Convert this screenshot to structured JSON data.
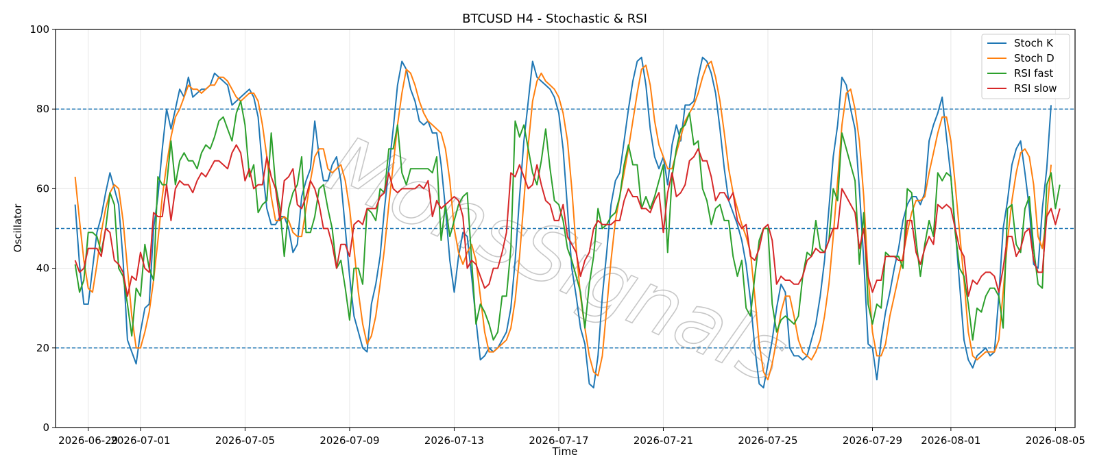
{
  "chart_data": {
    "type": "line",
    "title": "BTCUSD H4 - Stochastic & RSI",
    "xlabel": "Time",
    "ylabel": "Oscillator",
    "ylim": [
      0,
      100
    ],
    "yticks": [
      0,
      20,
      40,
      60,
      80,
      100
    ],
    "x_start": "2026-06-28T12:00",
    "x_interval_hours": 4,
    "xlim": [
      "2026-06-27T18:00",
      "2026-08-05T18:00"
    ],
    "xticks": [
      "2026-06-29",
      "2026-07-01",
      "2026-07-05",
      "2026-07-09",
      "2026-07-13",
      "2026-07-17",
      "2026-07-21",
      "2026-07-25",
      "2026-07-29",
      "2026-08-01",
      "2026-08-05"
    ],
    "reference_lines": [
      80,
      50,
      20
    ],
    "grid": true,
    "legend_position": "top-right",
    "watermark": "MonsSignals",
    "series": [
      {
        "name": "Stoch K",
        "color": "#1f77b4",
        "values": [
          56,
          41,
          31,
          31,
          40,
          49,
          53,
          59,
          64,
          60,
          56,
          42,
          22,
          19,
          16,
          24,
          30,
          31,
          50,
          58,
          70,
          80,
          75,
          80,
          85,
          83,
          88,
          83,
          84,
          85,
          85,
          86,
          89,
          88,
          87,
          86,
          81,
          82,
          83,
          84,
          85,
          83,
          78,
          65,
          55,
          51,
          51,
          53,
          53,
          50,
          44,
          46,
          58,
          62,
          65,
          77,
          68,
          62,
          62,
          66,
          68,
          62,
          50,
          38,
          28,
          24,
          20,
          19,
          31,
          36,
          43,
          55,
          65,
          75,
          86,
          92,
          90,
          85,
          82,
          77,
          76,
          77,
          74,
          74,
          66,
          55,
          42,
          34,
          43,
          49,
          48,
          38,
          27,
          17,
          18,
          20,
          19,
          20,
          22,
          24,
          30,
          42,
          58,
          72,
          82,
          92,
          88,
          87,
          86,
          85,
          83,
          79,
          70,
          55,
          40,
          33,
          25,
          21,
          11,
          10,
          18,
          33,
          44,
          56,
          62,
          64,
          72,
          80,
          87,
          92,
          93,
          86,
          75,
          68,
          65,
          68,
          61,
          71,
          76,
          72,
          81,
          81,
          82,
          88,
          93,
          92,
          89,
          84,
          75,
          65,
          57,
          54,
          51,
          47,
          41,
          32,
          20,
          11,
          10,
          16,
          22,
          30,
          36,
          34,
          20,
          18,
          18,
          17,
          18,
          22,
          26,
          33,
          42,
          55,
          68,
          76,
          88,
          86,
          80,
          75,
          60,
          42,
          21,
          20,
          12,
          22,
          29,
          34,
          40,
          45,
          52,
          56,
          58,
          58,
          56,
          59,
          72,
          76,
          79,
          83,
          73,
          63,
          50,
          36,
          22,
          17,
          15,
          18,
          19,
          20,
          18,
          19,
          33,
          50,
          57,
          66,
          70,
          72,
          64,
          55,
          41,
          40,
          55,
          65,
          81
        ]
      },
      {
        "name": "Stoch D",
        "color": "#ff7f0e",
        "values": [
          63,
          52,
          42,
          35,
          34,
          41,
          49,
          55,
          59,
          61,
          60,
          52,
          40,
          28,
          20,
          20,
          24,
          29,
          37,
          47,
          58,
          66,
          73,
          78,
          80,
          83,
          86,
          85,
          85,
          84,
          85,
          86,
          86,
          88,
          88,
          87,
          85,
          83,
          82,
          83,
          84,
          84,
          82,
          76,
          68,
          58,
          52,
          52,
          53,
          52,
          49,
          48,
          48,
          55,
          62,
          68,
          70,
          70,
          65,
          64,
          65,
          66,
          62,
          55,
          45,
          34,
          26,
          21,
          23,
          28,
          36,
          45,
          56,
          66,
          76,
          84,
          90,
          89,
          86,
          82,
          79,
          77,
          76,
          75,
          74,
          70,
          62,
          50,
          44,
          41,
          44,
          46,
          42,
          33,
          24,
          19,
          19,
          20,
          21,
          22,
          25,
          32,
          43,
          57,
          71,
          82,
          87,
          89,
          87,
          86,
          85,
          83,
          79,
          72,
          60,
          45,
          33,
          25,
          18,
          14,
          13,
          18,
          30,
          42,
          52,
          58,
          64,
          70,
          77,
          84,
          90,
          91,
          86,
          77,
          71,
          68,
          65,
          65,
          69,
          73,
          77,
          79,
          81,
          84,
          88,
          91,
          92,
          88,
          82,
          74,
          65,
          59,
          55,
          51,
          48,
          44,
          33,
          21,
          14,
          12,
          16,
          22,
          29,
          33,
          33,
          28,
          22,
          19,
          18,
          17,
          19,
          22,
          28,
          36,
          48,
          62,
          76,
          84,
          85,
          80,
          72,
          58,
          38,
          24,
          18,
          18,
          21,
          28,
          33,
          38,
          43,
          49,
          54,
          57,
          57,
          58,
          64,
          69,
          74,
          78,
          78,
          72,
          61,
          49,
          37,
          24,
          18,
          17,
          18,
          19,
          19,
          19,
          22,
          34,
          47,
          57,
          64,
          69,
          70,
          68,
          61,
          48,
          45,
          53,
          66
        ]
      },
      {
        "name": "RSI fast",
        "color": "#2ca02c",
        "values": [
          41,
          34,
          37,
          49,
          49,
          48,
          44,
          50,
          59,
          56,
          40,
          38,
          31,
          23,
          35,
          33,
          46,
          40,
          37,
          63,
          61,
          61,
          72,
          61,
          67,
          69,
          67,
          67,
          65,
          69,
          71,
          70,
          73,
          77,
          78,
          75,
          72,
          79,
          82,
          76,
          63,
          66,
          54,
          56,
          57,
          74,
          61,
          55,
          43,
          55,
          59,
          61,
          68,
          49,
          49,
          53,
          60,
          61,
          55,
          50,
          40,
          42,
          35,
          27,
          40,
          40,
          36,
          55,
          54,
          52,
          60,
          59,
          70,
          70,
          76,
          64,
          61,
          65,
          65,
          65,
          65,
          65,
          64,
          68,
          47,
          56,
          48,
          52,
          56,
          58,
          59,
          42,
          26,
          31,
          29,
          26,
          22,
          24,
          33,
          33,
          45,
          77,
          73,
          76,
          70,
          64,
          61,
          67,
          75,
          65,
          57,
          56,
          52,
          45,
          42,
          38,
          34,
          25,
          36,
          43,
          55,
          50,
          51,
          53,
          54,
          58,
          66,
          71,
          66,
          66,
          55,
          58,
          55,
          58,
          62,
          66,
          44,
          63,
          70,
          75,
          76,
          79,
          71,
          72,
          60,
          57,
          51,
          55,
          56,
          52,
          52,
          43,
          38,
          42,
          30,
          28,
          38,
          47,
          50,
          50,
          31,
          24,
          27,
          28,
          27,
          26,
          28,
          38,
          44,
          43,
          52,
          45,
          44,
          47,
          60,
          57,
          74,
          70,
          66,
          62,
          41,
          54,
          31,
          26,
          31,
          30,
          44,
          43,
          43,
          43,
          40,
          60,
          59,
          47,
          38,
          46,
          52,
          48,
          64,
          62,
          64,
          63,
          49,
          40,
          38,
          31,
          22,
          30,
          29,
          33,
          35,
          35,
          33,
          25,
          55,
          56,
          46,
          44,
          55,
          58,
          45,
          36,
          35,
          61,
          64,
          55,
          61
        ]
      },
      {
        "name": "RSI slow",
        "color": "#d62728",
        "values": [
          42,
          39,
          40,
          45,
          45,
          45,
          43,
          50,
          49,
          42,
          41,
          39,
          33,
          38,
          37,
          44,
          40,
          39,
          54,
          53,
          53,
          61,
          52,
          60,
          62,
          61,
          61,
          59,
          62,
          64,
          63,
          65,
          67,
          67,
          66,
          65,
          69,
          71,
          69,
          62,
          65,
          60,
          61,
          61,
          68,
          63,
          60,
          52,
          62,
          63,
          65,
          56,
          55,
          58,
          62,
          60,
          56,
          50,
          50,
          46,
          40,
          46,
          46,
          43,
          51,
          52,
          51,
          55,
          55,
          55,
          58,
          59,
          64,
          60,
          59,
          60,
          60,
          60,
          60,
          61,
          60,
          62,
          53,
          57,
          55,
          56,
          57,
          58,
          57,
          53,
          40,
          42,
          41,
          38,
          35,
          36,
          40,
          40,
          44,
          49,
          64,
          63,
          66,
          63,
          60,
          61,
          66,
          61,
          57,
          56,
          52,
          52,
          56,
          48,
          46,
          44,
          38,
          42,
          44,
          50,
          52,
          51,
          51,
          51,
          52,
          52,
          57,
          60,
          58,
          58,
          55,
          55,
          54,
          57,
          59,
          49,
          59,
          64,
          58,
          59,
          61,
          67,
          68,
          70,
          67,
          67,
          63,
          57,
          59,
          59,
          57,
          59,
          52,
          50,
          51,
          43,
          42,
          45,
          50,
          51,
          47,
          36,
          38,
          37,
          37,
          36,
          36,
          38,
          42,
          43,
          45,
          44,
          44,
          47,
          50,
          50,
          60,
          58,
          56,
          54,
          45,
          50,
          38,
          34,
          37,
          37,
          43,
          43,
          43,
          42,
          42,
          52,
          52,
          44,
          41,
          45,
          48,
          46,
          56,
          55,
          56,
          55,
          50,
          45,
          43,
          33,
          37,
          36,
          38,
          39,
          39,
          38,
          34,
          40,
          48,
          48,
          43,
          45,
          49,
          50,
          42,
          39,
          39,
          53,
          55,
          51,
          55
        ]
      }
    ]
  }
}
